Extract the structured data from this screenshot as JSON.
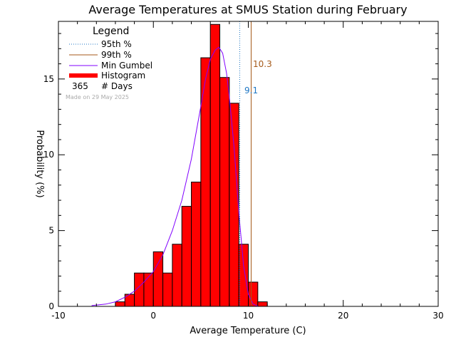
{
  "chart_data": {
    "type": "bar",
    "title": "Average Temperatures at SMUS Station during February",
    "xlabel": "Average Temperature (C)",
    "ylabel": "Probability (%)",
    "xlim": [
      -10,
      30
    ],
    "ylim": [
      0,
      18.8
    ],
    "x_ticks": [
      -10,
      0,
      10,
      20,
      30
    ],
    "y_ticks": [
      0,
      5,
      10,
      15
    ],
    "bin_width": 1,
    "bins": [
      {
        "left": -4,
        "value": 0.3
      },
      {
        "left": -3,
        "value": 0.8
      },
      {
        "left": -2,
        "value": 2.2
      },
      {
        "left": -1,
        "value": 2.2
      },
      {
        "left": 0,
        "value": 3.6
      },
      {
        "left": 1,
        "value": 2.2
      },
      {
        "left": 2,
        "value": 4.1
      },
      {
        "left": 3,
        "value": 6.6
      },
      {
        "left": 4,
        "value": 8.2
      },
      {
        "left": 5,
        "value": 16.4
      },
      {
        "left": 6,
        "value": 18.6
      },
      {
        "left": 7,
        "value": 15.1
      },
      {
        "left": 8,
        "value": 13.4
      },
      {
        "left": 9,
        "value": 4.1
      },
      {
        "left": 10,
        "value": 1.6
      },
      {
        "left": 11,
        "value": 0.3
      }
    ],
    "gumbel_curve": {
      "x": [
        -6.5,
        -5,
        -4,
        -3,
        -2,
        -1,
        0,
        1,
        2,
        3,
        4,
        5,
        5.5,
        6,
        6.5,
        6.9,
        7.3,
        7.7,
        8,
        8.5,
        9,
        9.5,
        10,
        10.5,
        11
      ],
      "y": [
        0.05,
        0.15,
        0.3,
        0.6,
        1.0,
        1.6,
        2.3,
        3.4,
        5.0,
        7.0,
        9.7,
        13.2,
        15.0,
        16.3,
        16.9,
        17.1,
        16.7,
        15.4,
        13.8,
        10.5,
        6.2,
        2.7,
        0.8,
        0.15,
        0.02
      ]
    },
    "percentile_95": 9.1,
    "percentile_99": 10.3,
    "legend": {
      "title": "Legend",
      "items": [
        {
          "label": "95th %",
          "style": "dotted",
          "color": "#1f77c4"
        },
        {
          "label": "99th %",
          "style": "solid",
          "color": "#a65a1a"
        },
        {
          "label": "Min Gumbel",
          "style": "solid",
          "color": "#8000ff"
        },
        {
          "label": "Histogram",
          "style": "thick",
          "color": "#ff0000"
        }
      ],
      "days_count": "365",
      "days_label": "# Days",
      "placement": "top-left"
    },
    "made_on": "Made on 29 May 2025",
    "annotations": {
      "p95_label": "9.1",
      "p99_label": "10.3"
    },
    "colors": {
      "histogram_fill": "#ff0000",
      "histogram_edge": "#000000",
      "gumbel": "#8000ff",
      "p95": "#1f77c4",
      "p99": "#a65a1a",
      "made_on": "#aaaaaa"
    },
    "grid": false
  }
}
